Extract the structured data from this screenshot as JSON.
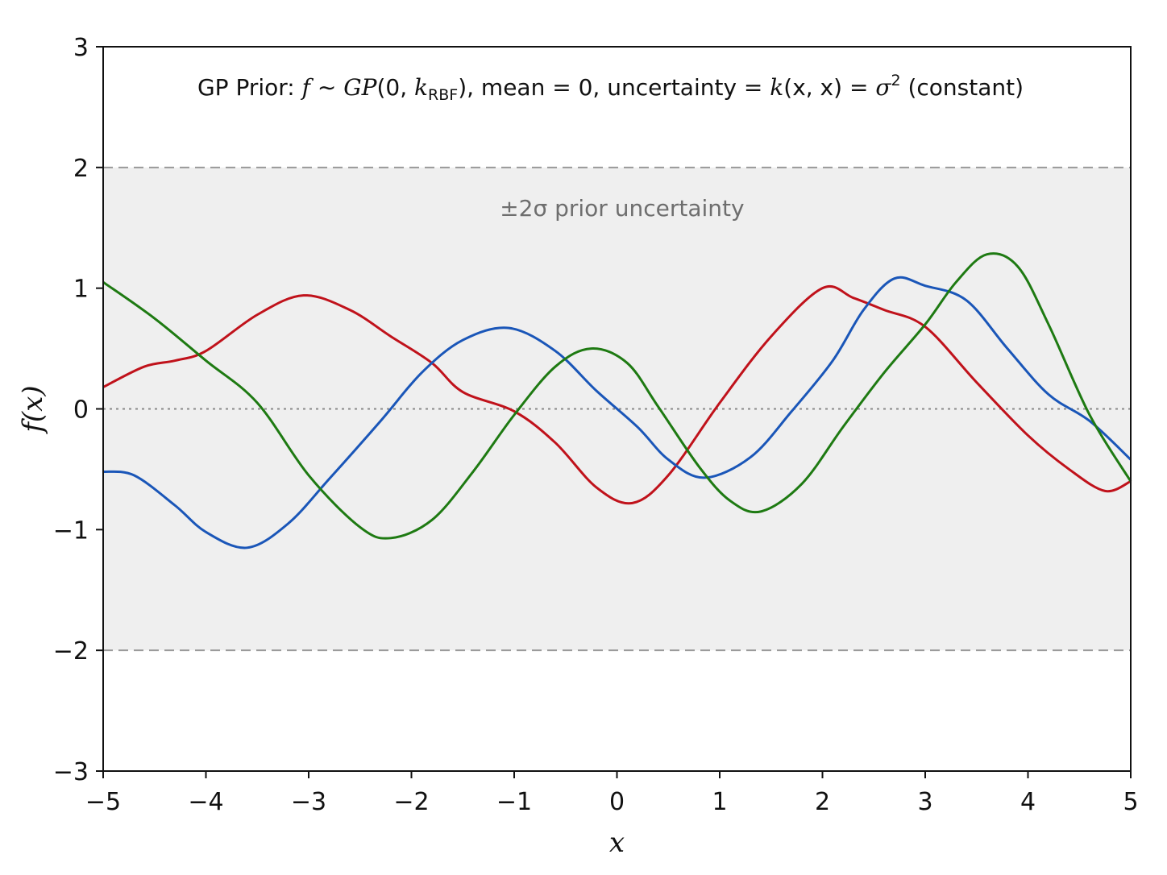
{
  "chart_data": {
    "type": "line",
    "title": "GP Prior: f ∼ GP(0, k_RBF), mean = 0, uncertainty = k(x, x) = σ² (constant)",
    "title_parts": {
      "prefix": "GP Prior: ",
      "f": "f",
      "sim": " ∼ ",
      "gp": "GP",
      "open": "(0, ",
      "k": "k",
      "sub": "RBF",
      "mid": "), mean = 0, uncertainty = ",
      "k2": "k",
      "args": "(x, x) = ",
      "sigma": "σ",
      "sup": "2",
      "suffix": " (constant)"
    },
    "xlabel": "x",
    "ylabel": "f(x)",
    "xlim": [
      -5,
      5
    ],
    "ylim": [
      -3,
      3
    ],
    "xticks": [
      -5,
      -4,
      -3,
      -2,
      -1,
      0,
      1,
      2,
      3,
      4,
      5
    ],
    "xtick_labels": [
      "−5",
      "−4",
      "−3",
      "−2",
      "−1",
      "0",
      "1",
      "2",
      "3",
      "4",
      "5"
    ],
    "yticks": [
      -3,
      -2,
      -1,
      0,
      1,
      2,
      3
    ],
    "ytick_labels": [
      "−3",
      "−2",
      "−1",
      "0",
      "1",
      "2",
      "3"
    ],
    "band": {
      "lower": -2,
      "upper": 2,
      "label": "±2σ  prior uncertainty",
      "fill": "#efefef",
      "line_color": "#999999"
    },
    "zero_line": {
      "y": 0,
      "color": "#888888",
      "style": "dotted"
    },
    "grid": false,
    "series": [
      {
        "color": "#c0121b",
        "x": [
          -5,
          -4.6,
          -4.3,
          -4.0,
          -3.5,
          -3.05,
          -2.6,
          -2.2,
          -1.8,
          -1.5,
          -1.0,
          -0.6,
          -0.2,
          0.15,
          0.5,
          1.0,
          1.5,
          2.0,
          2.3,
          2.6,
          3.0,
          3.5,
          4.0,
          4.4,
          4.75,
          5.0
        ],
        "y": [
          0.18,
          0.35,
          0.4,
          0.48,
          0.78,
          0.94,
          0.82,
          0.6,
          0.38,
          0.14,
          -0.02,
          -0.28,
          -0.65,
          -0.78,
          -0.55,
          0.05,
          0.6,
          1.0,
          0.92,
          0.82,
          0.68,
          0.22,
          -0.22,
          -0.5,
          -0.68,
          -0.6
        ]
      },
      {
        "color": "#1a56b8",
        "x": [
          -5,
          -4.7,
          -4.3,
          -4.0,
          -3.6,
          -3.2,
          -2.8,
          -2.3,
          -1.9,
          -1.5,
          -1.05,
          -0.6,
          -0.2,
          0.2,
          0.5,
          0.85,
          1.3,
          1.7,
          2.1,
          2.4,
          2.7,
          3.0,
          3.4,
          3.8,
          4.2,
          4.6,
          5.0
        ],
        "y": [
          -0.52,
          -0.55,
          -0.8,
          -1.02,
          -1.15,
          -0.95,
          -0.58,
          -0.1,
          0.3,
          0.57,
          0.67,
          0.48,
          0.15,
          -0.15,
          -0.42,
          -0.57,
          -0.4,
          -0.02,
          0.4,
          0.82,
          1.08,
          1.02,
          0.9,
          0.5,
          0.12,
          -0.1,
          -0.42
        ]
      },
      {
        "color": "#1e7a12",
        "x": [
          -5,
          -4.5,
          -4.0,
          -3.5,
          -3.0,
          -2.5,
          -2.2,
          -1.8,
          -1.4,
          -1.0,
          -0.6,
          -0.25,
          0.1,
          0.4,
          0.8,
          1.1,
          1.4,
          1.8,
          2.2,
          2.6,
          3.0,
          3.3,
          3.6,
          3.9,
          4.2,
          4.6,
          5.0
        ],
        "y": [
          1.05,
          0.75,
          0.4,
          0.05,
          -0.55,
          -0.98,
          -1.07,
          -0.92,
          -0.52,
          -0.05,
          0.35,
          0.5,
          0.38,
          0.02,
          -0.48,
          -0.76,
          -0.85,
          -0.62,
          -0.15,
          0.3,
          0.7,
          1.05,
          1.28,
          1.18,
          0.7,
          -0.05,
          -0.6
        ]
      }
    ]
  }
}
